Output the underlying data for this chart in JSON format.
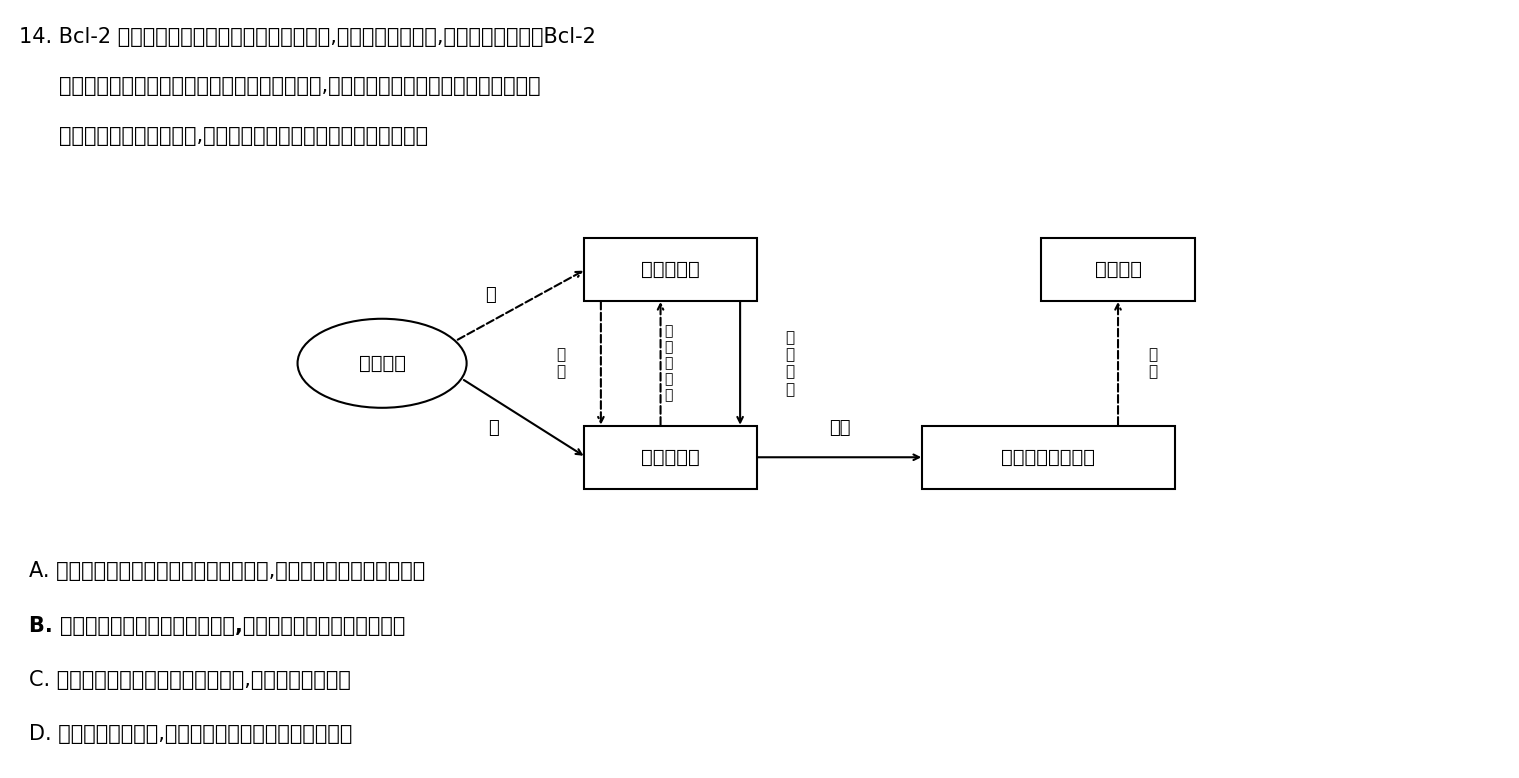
{
  "title_line1": "14. Bcl-2 家族是调节细胞凋亡的重要蛋白质家族,其既有促凋亡蛋白,也有抗凋亡蛋白。Bcl-2",
  "title_line2": "家族的这两类蛋白质在细胞凋亡过程中相互协调,通过介导线粒体途径的信号通路共同决",
  "title_line3": "定细胞是否进人凋亡程序,其调节机制如图所示。下列叙述正确的是",
  "option_A": "A. 哺乳动物成熟红细胞接收到凋亡信号时,其促凋亡蛋白基因开始表达",
  "option_B": "B. 凋亡信号改变线粒体膜的通透性,对生物体的正常发育是不利的",
  "option_C": "C. 凋亡信号会促进促凋亡蛋白的合成,进而促进细胞凋亡",
  "option_D": "D. 被病毒感染的细胞,细胞内的促凋亡蛋白活性可能增强",
  "bg_color": "#ffffff",
  "label_wu": "无",
  "label_you": "有",
  "label_zengqiang": "增强",
  "label_yizhi": "抑\n制",
  "label_jiechu": "解\n除\n抑\n制",
  "label_jiehe": "结\n合\n并\n抑\n制",
  "label_cujin": "促\n进",
  "node_apoptosis_signal": "凋亡信号",
  "node_anti": "抗凋亡蛋白",
  "node_pro": "促凋亡蛋白",
  "node_mito": "线粒体膜的通透性",
  "node_cell": "细胞凋亡"
}
